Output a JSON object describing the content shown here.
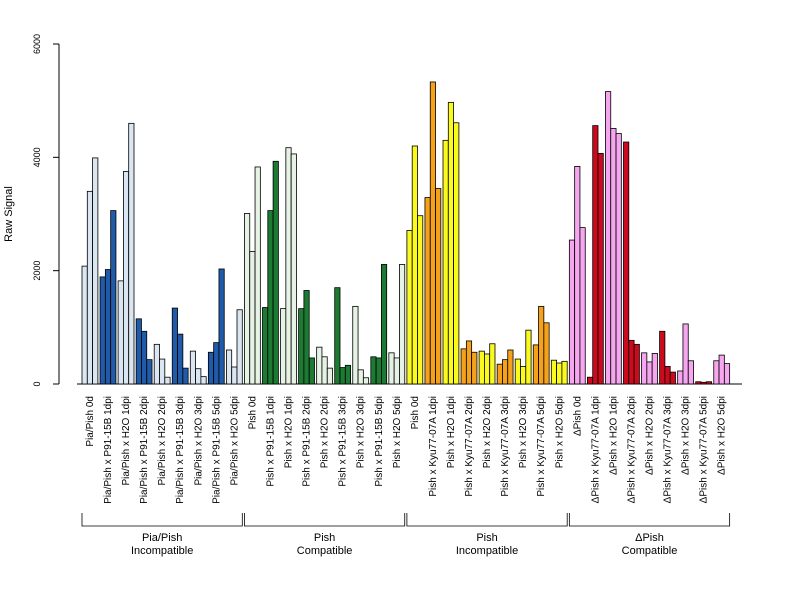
{
  "chart_data": {
    "type": "bar",
    "title": "",
    "xlabel": "",
    "ylabel": "Raw Signal",
    "ylim": [
      0,
      6000
    ],
    "yticks": [
      0,
      2000,
      4000,
      6000
    ],
    "grid": false,
    "categories": [
      "Pia/Pish 0d",
      "Pia/Pish x P91-15B 1dpi",
      "Pia/Pish x H2O 1dpi",
      "Pia/Pish x P91-15B 2dpi",
      "Pia/Pish x H2O 2dpi",
      "Pia/Pish x P91-15B 3dpi",
      "Pia/Pish x H2O 3dpi",
      "Pia/Pish x P91-15B 5dpi",
      "Pia/Pish x H2O 5dpi",
      "Pish 0d",
      "Pish x P91-15B 1dpi",
      "Pish x H2O 1dpi",
      "Pish x P91-15B 2dpi",
      "Pish x H2O 2dpi",
      "Pish x P91-15B 3dpi",
      "Pish x H2O 3dpi",
      "Pish x P91-15B 5dpi",
      "Pish x H2O 5dpi",
      "Pish 0d",
      "Pish x Kyu77-07A 1dpi",
      "Pish x H2O 1dpi",
      "Pish x Kyu77-07A 2dpi",
      "Pish x H2O 2dpi",
      "Pish x Kyu77-07A 3dpi",
      "Pish x H2O 3dpi",
      "Pish x Kyu77-07A 5dpi",
      "Pish x H2O 5dpi",
      "ΔPish 0d",
      "ΔPish x Kyu77-07A 1dpi",
      "ΔPish x H2O 1dpi",
      "ΔPish x Kyu77-07A 2dpi",
      "ΔPish x H2O 2dpi",
      "ΔPish x Kyu77-07A 3dpi",
      "ΔPish x H2O 3dpi",
      "ΔPish x Kyu77-07A 5dpi",
      "ΔPish x H2O 5dpi"
    ],
    "groups": [
      {
        "label_lines": [
          "Pia/Pish",
          "Incompatible"
        ],
        "treated_color": "#1f5ba8",
        "control_color": "#dbe6f3",
        "first": 0,
        "last": 8
      },
      {
        "label_lines": [
          "Pish",
          "Compatible"
        ],
        "treated_color": "#1d7a33",
        "control_color": "#e6f2e4",
        "first": 9,
        "last": 17
      },
      {
        "label_lines": [
          "Pish",
          "Incompatible"
        ],
        "treated_color": "#f5a21a",
        "control_color": "#fafa1e",
        "first": 18,
        "last": 26
      },
      {
        "label_lines": [
          "ΔPish",
          "Compatible"
        ],
        "treated_color": "#cc0a1e",
        "control_color": "#f5a6ef",
        "first": 27,
        "last": 35
      }
    ],
    "values": [
      [
        2080,
        3400,
        3990
      ],
      [
        1890,
        2020,
        3060
      ],
      [
        1820,
        3750,
        4600
      ],
      [
        1150,
        930,
        430
      ],
      [
        700,
        440,
        120
      ],
      [
        1340,
        880,
        280
      ],
      [
        580,
        270,
        130
      ],
      [
        560,
        730,
        2030
      ],
      [
        600,
        300,
        1310
      ],
      [
        3010,
        2340,
        3830
      ],
      [
        1350,
        3060,
        3930
      ],
      [
        1330,
        4170,
        4060
      ],
      [
        1330,
        1650,
        460
      ],
      [
        650,
        480,
        280
      ],
      [
        1700,
        290,
        330
      ],
      [
        1370,
        250,
        110
      ],
      [
        480,
        460,
        2110
      ],
      [
        550,
        460,
        2110
      ],
      [
        2710,
        4200,
        2970
      ],
      [
        3290,
        5330,
        3450
      ],
      [
        4300,
        4970,
        4610
      ],
      [
        620,
        760,
        560
      ],
      [
        580,
        530,
        710
      ],
      [
        350,
        430,
        600
      ],
      [
        440,
        310,
        950
      ],
      [
        690,
        1370,
        1080
      ],
      [
        420,
        370,
        400
      ],
      [
        2540,
        3840,
        2760
      ],
      [
        120,
        4560,
        4070
      ],
      [
        5160,
        4510,
        4420
      ],
      [
        4270,
        770,
        700
      ],
      [
        550,
        390,
        540
      ],
      [
        930,
        310,
        210
      ],
      [
        230,
        1060,
        410
      ],
      [
        40,
        30,
        40
      ],
      [
        410,
        510,
        360
      ]
    ]
  }
}
